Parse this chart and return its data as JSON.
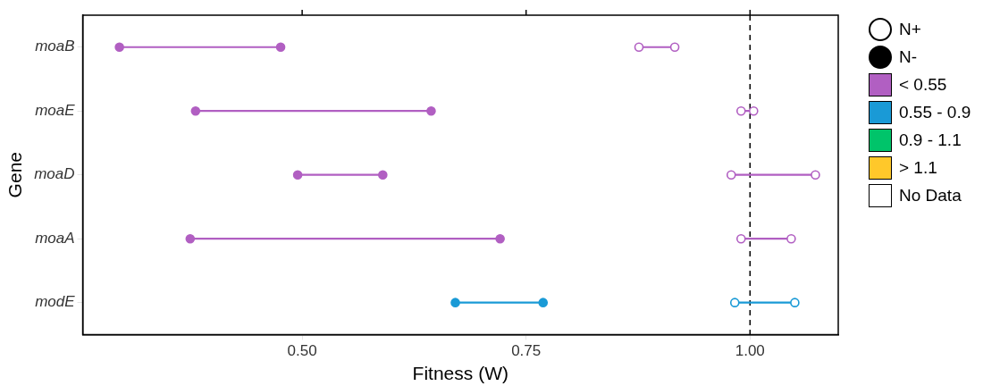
{
  "chart_data": {
    "type": "scatter",
    "orientation": "horizontal",
    "xlabel": "Fitness (W)",
    "ylabel": "Gene",
    "categories": [
      "moaB",
      "moaE",
      "moaD",
      "moaA",
      "modE"
    ],
    "xlim": [
      0.255,
      1.0985
    ],
    "xticks": [
      {
        "value": 0.5,
        "label": "0.50"
      },
      {
        "value": 0.75,
        "label": "0.75"
      },
      {
        "value": 1.0,
        "label": "1.00"
      }
    ],
    "grid": false,
    "legend": "right",
    "marker": "circle",
    "ref_lines": [
      {
        "axis": "x",
        "value": 1.0,
        "line_style": "dashed",
        "color": "#000000"
      }
    ],
    "series": [
      {
        "name": "N+",
        "color": "#ffffff",
        "values": [
          0.876,
          0.99,
          0.979,
          0.99,
          0.983
        ],
        "colors": [
          "#b15fc2",
          "#b15fc2",
          "#b15fc2",
          "#b15fc2",
          "#1a9ad6"
        ]
      },
      {
        "color": "#ffffff",
        "values": [
          0.916,
          1.004,
          1.073,
          1.046,
          1.05
        ],
        "colors": [
          "#b15fc2",
          "#b15fc2",
          "#b15fc2",
          "#b15fc2",
          "#1a9ad6"
        ]
      },
      {
        "name": "N-",
        "color": "#000000",
        "values": [
          0.296,
          0.381,
          0.495,
          0.375,
          0.671
        ],
        "colors": [
          "#b15fc2",
          "#b15fc2",
          "#b15fc2",
          "#b15fc2",
          "#1a9ad6"
        ]
      },
      {
        "color": "#000000",
        "values": [
          0.476,
          0.644,
          0.59,
          0.721,
          0.769
        ],
        "colors": [
          "#b15fc2",
          "#b15fc2",
          "#b15fc2",
          "#b15fc2",
          "#1a9ad6"
        ]
      },
      {
        "name": "< 0.55",
        "color": "#b15fc2",
        "values": [
          null,
          null,
          null,
          null,
          null
        ]
      },
      {
        "name": "0.55 - 0.9",
        "color": "#1a9ad6",
        "values": [
          null,
          null,
          null,
          null,
          null
        ]
      },
      {
        "name": "0.9 - 1.1",
        "color": "#00c46a",
        "values": [
          null,
          null,
          null,
          null,
          null
        ]
      },
      {
        "name": "> 1.1",
        "color": "#ffc82a",
        "values": [
          null,
          null,
          null,
          null,
          null
        ]
      },
      {
        "name": "No Data",
        "color": "#ffffff",
        "values": [
          null,
          null,
          null,
          null,
          null
        ]
      }
    ]
  }
}
